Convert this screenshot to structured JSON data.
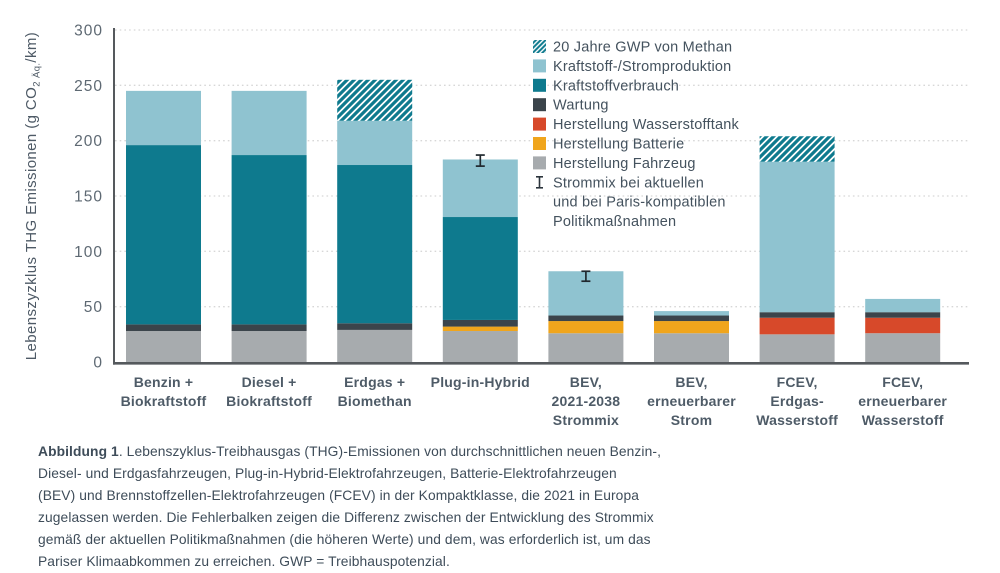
{
  "chart_data": {
    "type": "bar",
    "stacked": true,
    "title": "",
    "xlabel": "",
    "ylabel": "Lebenszyzklus THG Emissionen (g CO2 Äq./km)",
    "ylabel_parts": {
      "prefix": "Lebenszyzklus THG Emissionen (g CO",
      "sub": "2 Äq.",
      "suffix": "/km)"
    },
    "ylim": [
      0,
      300
    ],
    "yticks": [
      0,
      50,
      100,
      150,
      200,
      250,
      300
    ],
    "grid": "horizontal-dotted",
    "legend_position": "top-right",
    "categories": [
      "Benzin + Biokraftstoff",
      "Diesel + Biokraftstoff",
      "Erdgas + Biomethan",
      "Plug-in-Hybrid",
      "BEV, 2021-2038 Strommix",
      "BEV, erneuerbarer Strom",
      "FCEV, Erdgas-Wasserstoff",
      "FCEV, erneuerbarer Wasserstoff"
    ],
    "category_label_lines": [
      [
        "Benzin +",
        "Biokraftstoff"
      ],
      [
        "Diesel +",
        "Biokraftstoff"
      ],
      [
        "Erdgas +",
        "Biomethan"
      ],
      [
        "Plug-in-Hybrid"
      ],
      [
        "BEV,",
        "2021-2038",
        "Strommix"
      ],
      [
        "BEV,",
        "erneuerbarer",
        "Strom"
      ],
      [
        "FCEV,",
        "Erdgas-",
        "Wasserstoff"
      ],
      [
        "FCEV,",
        "erneuerbarer",
        "Wasserstoff"
      ]
    ],
    "series": [
      {
        "name": "Herstellung Fahrzeug",
        "color": "#a7abae",
        "values": [
          28,
          28,
          29,
          28,
          26,
          26,
          25,
          26
        ]
      },
      {
        "name": "Herstellung Batterie",
        "color": "#f0a51c",
        "values": [
          0,
          0,
          0,
          4,
          11,
          11,
          0,
          0
        ]
      },
      {
        "name": "Herstellung Wasserstofftank",
        "color": "#d7492a",
        "values": [
          0,
          0,
          0,
          0,
          0,
          0,
          15,
          14
        ]
      },
      {
        "name": "Wartung",
        "color": "#3b444b",
        "values": [
          6,
          6,
          6,
          6,
          5,
          5,
          5,
          5
        ]
      },
      {
        "name": "Kraftstoffverbrauch",
        "color": "#0e7a8e",
        "values": [
          162,
          153,
          143,
          93,
          0,
          0,
          0,
          0
        ]
      },
      {
        "name": "Kraftstoff-/Stromproduktion",
        "color": "#8fc3d0",
        "values": [
          49,
          58,
          40,
          52,
          40,
          4,
          136,
          12
        ]
      },
      {
        "name": "20 Jahre GWP von Methan",
        "color": "#0e7a8e",
        "style": "hatch",
        "values": [
          0,
          0,
          37,
          0,
          0,
          0,
          23,
          0
        ]
      }
    ],
    "totals": [
      245,
      245,
      255,
      183,
      82,
      46,
      204,
      57
    ],
    "error_bars": [
      {
        "category": "Plug-in-Hybrid",
        "index": 3,
        "low": 177,
        "high": 187
      },
      {
        "category": "BEV, 2021-2038 Strommix",
        "index": 4,
        "low": 73,
        "high": 82
      }
    ],
    "legend": [
      {
        "label": "20 Jahre GWP von Methan",
        "swatch": "hatch"
      },
      {
        "label": "Kraftstoff-/Stromproduktion",
        "swatch": "#8fc3d0"
      },
      {
        "label": "Kraftstoffverbrauch",
        "swatch": "#0e7a8e"
      },
      {
        "label": "Wartung",
        "swatch": "#3b444b"
      },
      {
        "label": "Herstellung Wasserstofftank",
        "swatch": "#d7492a"
      },
      {
        "label": "Herstellung Batterie",
        "swatch": "#f0a51c"
      },
      {
        "label": "Herstellung Fahrzeug",
        "swatch": "#a7abae"
      },
      {
        "label_lines": [
          "Strommix bei aktuellen",
          "und bei Paris-kompatiblen",
          "Politikmaßnahmen"
        ],
        "swatch": "errorbar"
      }
    ],
    "colors": {
      "grid": "#d7d7d7",
      "axis": "#55595d",
      "tick_text": "#5e6973",
      "category_text": "#4e5b67",
      "legend_text": "#44525e",
      "error_bar": "#20282e"
    }
  },
  "caption": {
    "label": "Abbildung 1",
    "lines": [
      ". Lebenszyklus-Treibhausgas (THG)-Emissionen von durchschnittlichen neuen Benzin-,",
      "Diesel- und Erdgasfahrzeugen, Plug-in-Hybrid-Elektrofahrzeugen, Batterie-Elektrofahrzeugen",
      "(BEV) und Brennstoffzellen-Elektrofahrzeugen (FCEV) in der Kompaktklasse, die 2021 in Europa",
      "zugelassen werden. Die Fehlerbalken zeigen die Differenz zwischen der Entwicklung des Strommix",
      "gemäß der aktuellen Politikmaßnahmen (die höheren Werte) und dem, was erforderlich ist, um das",
      "Pariser Klimaabkommen zu erreichen. GWP = Treibhauspotenzial."
    ]
  }
}
